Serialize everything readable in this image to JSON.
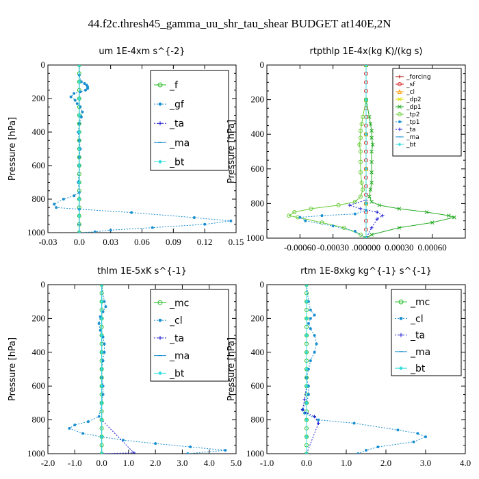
{
  "page_title": "44.f2c.thresh45_gamma_uu_shr_tau_shear  BUDGET at140E,2N",
  "chart_data": [
    {
      "type": "line",
      "title": "um   1E-4xm s^{-2}",
      "ylabel": "Pressure [hPa]",
      "xlim": [
        -0.03,
        0.15
      ],
      "ylim": [
        1000,
        0
      ],
      "xticks": [
        -0.03,
        0.0,
        0.03,
        0.06,
        0.09,
        0.12,
        0.15
      ],
      "xtick_labels": [
        "-0.03",
        "0.0",
        "0.03",
        "0.06",
        "0.09",
        "0.12",
        "0.15"
      ],
      "yticks": [
        0,
        200,
        400,
        600,
        800,
        1000
      ],
      "legend_position": "top-right",
      "legend_style": "large",
      "series": [
        {
          "name": "_f",
          "color": "#22bb22",
          "marker": "circle",
          "dashed": false,
          "x": [
            0,
            0,
            0,
            0,
            0,
            0,
            0,
            0,
            0,
            0,
            0,
            0,
            0,
            0,
            0,
            0,
            0,
            0,
            0,
            0,
            0
          ],
          "y": [
            0,
            50,
            100,
            150,
            200,
            250,
            300,
            350,
            400,
            450,
            500,
            550,
            600,
            650,
            700,
            750,
            800,
            850,
            900,
            950,
            1000
          ]
        },
        {
          "name": "_gf",
          "color": "#1a8fd0",
          "marker": "dot",
          "dashed": true,
          "x": [
            0,
            0,
            0.002,
            0.005,
            0.007,
            0.008,
            0.008,
            0.006,
            0.001,
            -0.005,
            -0.008,
            -0.004,
            -0.002,
            0.001,
            0.003,
            0.002,
            0.0,
            -0.001,
            0.0,
            0.001,
            0.0,
            0.0,
            -0.001,
            0.0,
            -0.005,
            -0.015,
            -0.024,
            -0.022,
            0.0,
            0.05,
            0.11,
            0.145,
            0.12,
            0.07,
            0.03,
            0.015,
            0.0
          ],
          "y": [
            0,
            60,
            100,
            110,
            120,
            130,
            140,
            150,
            160,
            170,
            190,
            210,
            230,
            250,
            280,
            310,
            350,
            400,
            450,
            500,
            550,
            600,
            700,
            760,
            780,
            800,
            830,
            850,
            860,
            880,
            910,
            930,
            950,
            970,
            985,
            995,
            1000
          ]
        },
        {
          "name": "_ta",
          "color": "#1a1ad0",
          "marker": "plus",
          "dashed": true,
          "x": [
            0,
            0,
            0,
            0,
            0,
            0,
            0
          ],
          "y": [
            0,
            200,
            400,
            600,
            800,
            950,
            1000
          ]
        },
        {
          "name": "_ma",
          "color": "#1a8fd0",
          "marker": "dash",
          "dashed": false,
          "x": [
            0,
            0,
            0,
            0,
            0,
            0,
            0
          ],
          "y": [
            0,
            200,
            400,
            600,
            800,
            950,
            1000
          ]
        },
        {
          "name": "_bt",
          "color": "#33dddd",
          "marker": "diamond",
          "dashed": false,
          "x": [
            0,
            0,
            0,
            0,
            0,
            0,
            0,
            0,
            0,
            0,
            0
          ],
          "y": [
            0,
            100,
            200,
            300,
            400,
            500,
            600,
            700,
            800,
            900,
            1000
          ]
        }
      ]
    },
    {
      "type": "line",
      "title": "rtpthlp   1E-4x(kg K)/(kg s)",
      "ylabel": "Pressure [hPa]",
      "xlim": [
        -0.0009,
        0.0009
      ],
      "ylim": [
        1000,
        0
      ],
      "xticks": [
        -0.0006,
        -0.0003,
        0.0,
        0.0003,
        0.0006
      ],
      "xtick_labels": [
        "-0.00060",
        "-0.00030",
        ".000000",
        "0.00030",
        "0.00060"
      ],
      "yticks": [
        0,
        200,
        400,
        600,
        800,
        1000
      ],
      "legend_position": "top-right",
      "legend_style": "small",
      "series": [
        {
          "name": "_forcing",
          "color": "#aa0000",
          "marker": "plus",
          "dashed": false,
          "x": [
            0,
            0,
            0,
            0,
            0,
            0
          ],
          "y": [
            0,
            200,
            400,
            600,
            800,
            1000
          ]
        },
        {
          "name": "_sf",
          "color": "#dd2222",
          "marker": "circle",
          "dashed": false,
          "x": [
            0,
            0,
            0,
            0,
            0,
            0,
            0,
            0,
            0,
            0,
            0,
            0,
            0,
            0,
            0,
            0,
            0,
            0,
            0,
            0,
            0
          ],
          "y": [
            0,
            50,
            100,
            150,
            200,
            250,
            300,
            350,
            400,
            450,
            500,
            550,
            600,
            650,
            700,
            750,
            800,
            850,
            900,
            950,
            1000
          ]
        },
        {
          "name": "_cl",
          "color": "#ff9900",
          "marker": "triangle",
          "dashed": false,
          "x": [
            0,
            0,
            0,
            0,
            0,
            0
          ],
          "y": [
            0,
            200,
            400,
            600,
            800,
            1000
          ]
        },
        {
          "name": "_dp2",
          "color": "#dddd00",
          "marker": "x",
          "dashed": false,
          "x": [
            0,
            0,
            0,
            0,
            0,
            0
          ],
          "y": [
            0,
            200,
            400,
            600,
            800,
            1000
          ]
        },
        {
          "name": "_dp1",
          "color": "#22aa22",
          "marker": "x",
          "dashed": false,
          "x": [
            0,
            0,
            3e-05,
            4e-05,
            5e-05,
            5e-05,
            6e-05,
            5e-05,
            5e-05,
            5e-05,
            5e-05,
            4e-05,
            3e-05,
            5e-05,
            0.00012,
            0.0003,
            0.00055,
            0.00075,
            0.0008,
            0.0006,
            0.0003,
            5e-05,
            0
          ],
          "y": [
            0,
            200,
            300,
            340,
            380,
            420,
            460,
            500,
            560,
            620,
            680,
            720,
            760,
            790,
            810,
            830,
            850,
            870,
            880,
            910,
            940,
            980,
            1000
          ]
        },
        {
          "name": "_tp2",
          "color": "#66cc33",
          "marker": "circle",
          "dashed": false,
          "x": [
            0,
            0,
            -3e-05,
            -4e-05,
            -5e-05,
            -5e-05,
            -6e-05,
            -5e-05,
            -5e-05,
            -5e-05,
            -4e-05,
            -3e-05,
            -5e-05,
            -0.0001,
            -0.00025,
            -0.0005,
            -0.00065,
            -0.0007,
            -0.00062,
            -0.0004,
            -0.0002,
            -5e-05,
            0
          ],
          "y": [
            0,
            200,
            300,
            340,
            380,
            420,
            460,
            500,
            560,
            620,
            680,
            720,
            760,
            790,
            810,
            830,
            850,
            870,
            880,
            910,
            940,
            980,
            1000
          ]
        },
        {
          "name": "_tp1",
          "color": "#1a8fd0",
          "marker": "dot",
          "dashed": true,
          "x": [
            0,
            0,
            0,
            -0.0001,
            -0.0004,
            -0.0006,
            -0.00055,
            -0.0003,
            -0.0001,
            0
          ],
          "y": [
            0,
            800,
            840,
            860,
            870,
            880,
            900,
            930,
            960,
            1000
          ]
        },
        {
          "name": "_ta",
          "color": "#1a1ad0",
          "marker": "plus",
          "dashed": true,
          "x": [
            0,
            0,
            -0.00015,
            -5e-05,
            0.0001,
            0.00015,
            0.0001,
            5e-05,
            0
          ],
          "y": [
            0,
            780,
            810,
            830,
            850,
            870,
            890,
            940,
            1000
          ]
        },
        {
          "name": "_ma",
          "color": "#1a8fd0",
          "marker": "dash",
          "dashed": false,
          "x": [
            0,
            0,
            0,
            0
          ],
          "y": [
            0,
            400,
            800,
            1000
          ]
        },
        {
          "name": "_bt",
          "color": "#33dddd",
          "marker": "diamond",
          "dashed": false,
          "x": [
            0,
            0,
            0,
            0,
            0,
            0
          ],
          "y": [
            0,
            200,
            400,
            600,
            800,
            1000
          ]
        }
      ]
    },
    {
      "type": "line",
      "title": "thlm   1E-5xK s^{-1}",
      "ylabel": "Pressure [hPa]",
      "xlim": [
        -2.0,
        5.0
      ],
      "ylim": [
        1000,
        0
      ],
      "xticks": [
        -2.0,
        -1.0,
        0.0,
        1.0,
        2.0,
        3.0,
        4.0,
        5.0
      ],
      "xtick_labels": [
        "-2.0",
        "-1.0",
        "0.0",
        "1.0",
        "2.0",
        "3.0",
        "4.0",
        "5.0"
      ],
      "yticks": [
        0,
        200,
        400,
        600,
        800,
        1000
      ],
      "legend_position": "top-right",
      "legend_style": "large",
      "series": [
        {
          "name": "_mc",
          "color": "#22bb22",
          "marker": "circle",
          "dashed": false,
          "x": [
            0,
            0,
            0,
            0,
            0,
            0,
            0,
            0,
            0,
            0,
            0,
            0,
            0,
            0,
            0,
            0,
            0,
            0,
            0,
            0,
            0
          ],
          "y": [
            0,
            50,
            100,
            150,
            200,
            250,
            300,
            350,
            400,
            450,
            500,
            550,
            600,
            650,
            700,
            750,
            800,
            850,
            900,
            950,
            1000
          ]
        },
        {
          "name": "_cl",
          "color": "#1a8fd0",
          "marker": "dot",
          "dashed": true,
          "x": [
            0,
            0.1,
            0.15,
            0.05,
            -0.05,
            -0.1,
            -0.05,
            0.05,
            0.1,
            0.1,
            0.05,
            0.0,
            0.0,
            0.05,
            0.05,
            0.0,
            -0.1,
            -0.5,
            -1.0,
            -1.2,
            -0.7,
            0.0,
            0.8,
            2.0,
            3.3,
            4.6,
            3.2
          ],
          "y": [
            0,
            100,
            130,
            160,
            190,
            230,
            270,
            310,
            350,
            400,
            450,
            500,
            550,
            600,
            650,
            700,
            780,
            810,
            830,
            850,
            880,
            900,
            920,
            940,
            960,
            980,
            1000
          ]
        },
        {
          "name": "_ta",
          "color": "#1a1ad0",
          "marker": "plus",
          "dashed": true,
          "x": [
            0,
            0,
            0,
            0,
            0,
            1.2,
            0
          ],
          "y": [
            0,
            200,
            400,
            600,
            800,
            995,
            1000
          ]
        },
        {
          "name": "_ma",
          "color": "#1a8fd0",
          "marker": "dash",
          "dashed": false,
          "x": [
            0,
            0,
            0,
            0,
            0
          ],
          "y": [
            0,
            300,
            600,
            900,
            1000
          ]
        },
        {
          "name": "_bt",
          "color": "#33dddd",
          "marker": "diamond",
          "dashed": false,
          "x": [
            0,
            0,
            0,
            0,
            0,
            0,
            0,
            0,
            0,
            0,
            0
          ],
          "y": [
            0,
            100,
            200,
            300,
            400,
            500,
            600,
            700,
            800,
            900,
            1000
          ]
        }
      ]
    },
    {
      "type": "line",
      "title": "rtm   1E-8xkg kg^{-1} s^{-1}",
      "ylabel": "Pressure [hPa]",
      "xlim": [
        -1.0,
        4.0
      ],
      "ylim": [
        1000,
        0
      ],
      "xticks": [
        -1.0,
        0.0,
        1.0,
        2.0,
        3.0,
        4.0
      ],
      "xtick_labels": [
        "-1.0",
        "0.0",
        "1.0",
        "2.0",
        "3.0",
        "4.0"
      ],
      "yticks": [
        0,
        200,
        400,
        600,
        800,
        1000
      ],
      "legend_position": "top-right",
      "legend_style": "large",
      "series": [
        {
          "name": "_mc",
          "color": "#22bb22",
          "marker": "circle",
          "dashed": false,
          "x": [
            0,
            0,
            0,
            0,
            0,
            0,
            0,
            0,
            0,
            0,
            0,
            0,
            0,
            0,
            0,
            0,
            0,
            0,
            0,
            0,
            0
          ],
          "y": [
            0,
            50,
            100,
            150,
            200,
            250,
            300,
            350,
            400,
            450,
            500,
            550,
            600,
            650,
            700,
            750,
            800,
            850,
            900,
            950,
            1000
          ]
        },
        {
          "name": "_cl",
          "color": "#1a8fd0",
          "marker": "dot",
          "dashed": true,
          "x": [
            0,
            0.05,
            0.1,
            0.2,
            0.1,
            0.05,
            0.1,
            0.2,
            0.25,
            0.2,
            0.1,
            0.05,
            0.0,
            0.05,
            0.05,
            0.0,
            -0.1,
            -0.05,
            0.3,
            1.2,
            2.3,
            2.8,
            3.0,
            2.7,
            1.8,
            1.5,
            1.3
          ],
          "y": [
            0,
            100,
            150,
            180,
            200,
            230,
            260,
            300,
            350,
            400,
            450,
            500,
            550,
            600,
            650,
            700,
            740,
            760,
            800,
            820,
            860,
            880,
            900,
            930,
            960,
            980,
            1000
          ]
        },
        {
          "name": "_ta",
          "color": "#1a1ad0",
          "marker": "plus",
          "dashed": true,
          "x": [
            0,
            0,
            -0.05,
            -0.1,
            0,
            0.2,
            0.3,
            0
          ],
          "y": [
            0,
            600,
            680,
            740,
            760,
            780,
            820,
            1000
          ]
        },
        {
          "name": "_ma",
          "color": "#1a8fd0",
          "marker": "dash",
          "dashed": false,
          "x": [
            0,
            0,
            0,
            0,
            0
          ],
          "y": [
            0,
            300,
            600,
            900,
            1000
          ]
        },
        {
          "name": "_bt",
          "color": "#33dddd",
          "marker": "diamond",
          "dashed": false,
          "x": [
            0,
            0,
            0,
            0,
            0,
            0,
            0,
            0,
            0,
            0,
            0
          ],
          "y": [
            0,
            100,
            200,
            300,
            400,
            500,
            600,
            700,
            800,
            900,
            1000
          ]
        }
      ]
    }
  ]
}
